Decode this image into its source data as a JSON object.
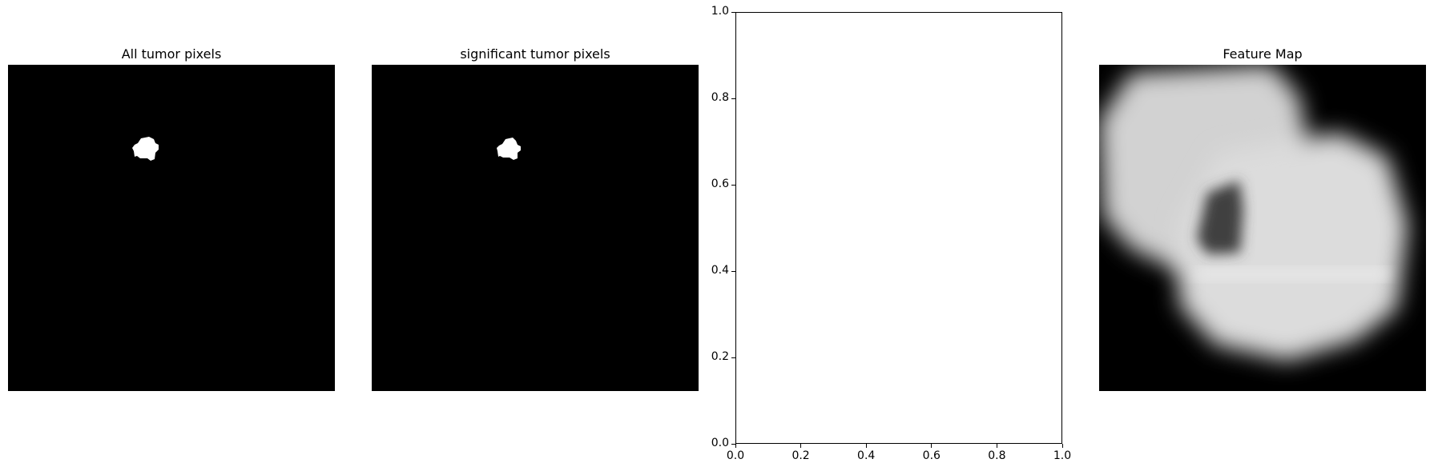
{
  "figure": {
    "panels": [
      {
        "title": "All tumor pixels"
      },
      {
        "title": "significant tumor pixels"
      },
      {
        "title": ""
      },
      {
        "title": "Feature Map"
      }
    ]
  },
  "chart_data": {
    "type": "scatter",
    "title": "",
    "xlabel": "",
    "ylabel": "",
    "xlim": [
      0.0,
      1.0
    ],
    "ylim": [
      0.0,
      1.0
    ],
    "xticks": [
      "0.0",
      "0.2",
      "0.4",
      "0.6",
      "0.8",
      "1.0"
    ],
    "yticks": [
      "0.0",
      "0.2",
      "0.4",
      "0.6",
      "0.8",
      "1.0"
    ],
    "series": [],
    "grid": false
  },
  "colors": {
    "background": "#ffffff",
    "mask_background": "#000000",
    "mask_foreground": "#ffffff"
  }
}
